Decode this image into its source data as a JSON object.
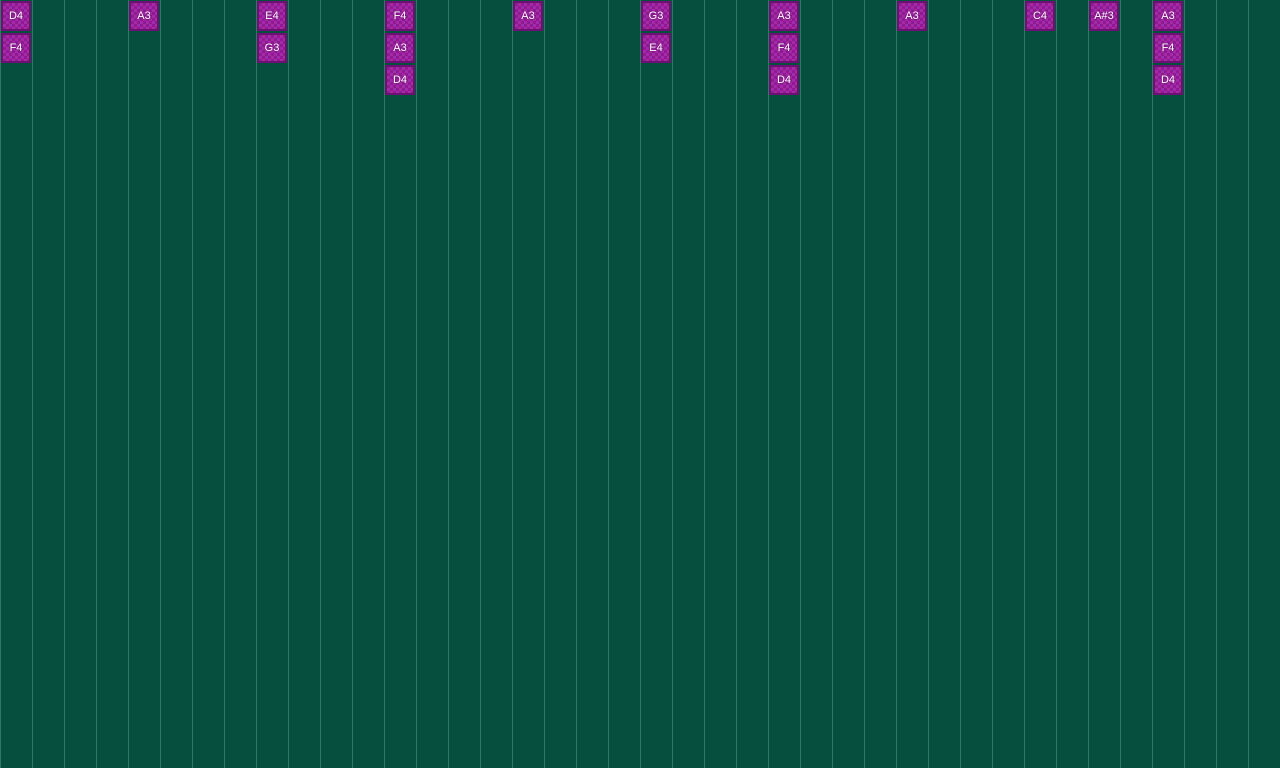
{
  "colors": {
    "background": "#064f3e",
    "gridline": "#2b7a62",
    "note": "#8e1b92",
    "note_border": "#6e0f72"
  },
  "columns": [
    {
      "column": 0,
      "notes": [
        "D4",
        "F4"
      ]
    },
    {
      "column": 4,
      "notes": [
        "A3"
      ]
    },
    {
      "column": 8,
      "notes": [
        "E4",
        "G3"
      ]
    },
    {
      "column": 12,
      "notes": [
        "F4",
        "A3",
        "D4"
      ]
    },
    {
      "column": 16,
      "notes": [
        "A3"
      ]
    },
    {
      "column": 20,
      "notes": [
        "G3",
        "E4"
      ]
    },
    {
      "column": 24,
      "notes": [
        "A3",
        "F4",
        "D4"
      ]
    },
    {
      "column": 28,
      "notes": [
        "A3"
      ]
    },
    {
      "column": 32,
      "notes": [
        "C4"
      ]
    },
    {
      "column": 34,
      "notes": [
        "A#3"
      ]
    },
    {
      "column": 36,
      "notes": [
        "A3",
        "F4",
        "D4"
      ]
    }
  ]
}
